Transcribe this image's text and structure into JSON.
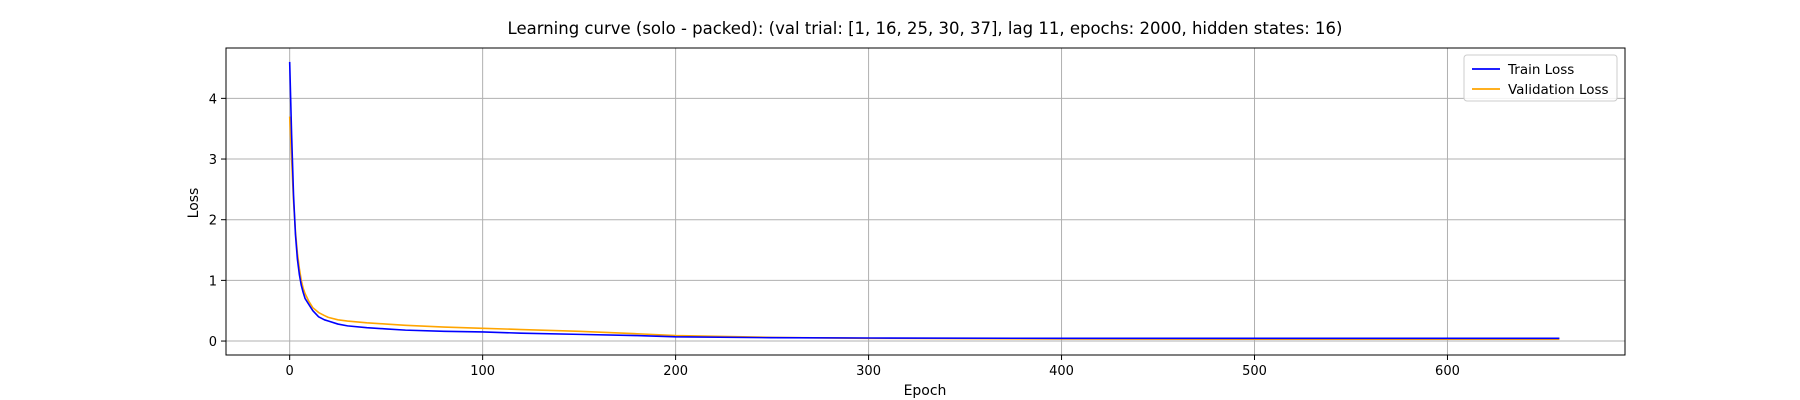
{
  "chart_data": {
    "type": "line",
    "title": "Learning curve (solo - packed): (val trial: [1, 16, 25, 30, 37], lag 11, epochs: 2000, hidden states: 16)",
    "xlabel": "Epoch",
    "ylabel": "Loss",
    "xlim": [
      -33,
      692
    ],
    "ylim": [
      -0.23,
      4.83
    ],
    "xticks": [
      0,
      100,
      200,
      300,
      400,
      500,
      600
    ],
    "yticks": [
      0,
      1,
      2,
      3,
      4
    ],
    "grid": true,
    "legend_position": "top-right",
    "series": [
      {
        "name": "Train Loss",
        "color": "#0000ff",
        "points": [
          [
            0,
            4.6
          ],
          [
            1,
            3.4
          ],
          [
            2,
            2.4
          ],
          [
            3,
            1.75
          ],
          [
            4,
            1.35
          ],
          [
            5,
            1.1
          ],
          [
            6,
            0.92
          ],
          [
            7,
            0.8
          ],
          [
            8,
            0.7
          ],
          [
            10,
            0.6
          ],
          [
            12,
            0.5
          ],
          [
            15,
            0.4
          ],
          [
            18,
            0.35
          ],
          [
            20,
            0.33
          ],
          [
            25,
            0.28
          ],
          [
            30,
            0.25
          ],
          [
            40,
            0.22
          ],
          [
            50,
            0.2
          ],
          [
            60,
            0.18
          ],
          [
            80,
            0.16
          ],
          [
            100,
            0.15
          ],
          [
            120,
            0.13
          ],
          [
            150,
            0.11
          ],
          [
            180,
            0.09
          ],
          [
            200,
            0.07
          ],
          [
            250,
            0.055
          ],
          [
            300,
            0.05
          ],
          [
            400,
            0.045
          ],
          [
            500,
            0.045
          ],
          [
            600,
            0.045
          ],
          [
            658,
            0.045
          ]
        ]
      },
      {
        "name": "Validation Loss",
        "color": "#ffa500",
        "points": [
          [
            0,
            3.7
          ],
          [
            1,
            3.0
          ],
          [
            2,
            2.3
          ],
          [
            3,
            1.8
          ],
          [
            4,
            1.45
          ],
          [
            5,
            1.2
          ],
          [
            6,
            1.0
          ],
          [
            7,
            0.87
          ],
          [
            8,
            0.78
          ],
          [
            10,
            0.65
          ],
          [
            12,
            0.55
          ],
          [
            15,
            0.47
          ],
          [
            18,
            0.42
          ],
          [
            20,
            0.39
          ],
          [
            25,
            0.35
          ],
          [
            30,
            0.33
          ],
          [
            40,
            0.3
          ],
          [
            50,
            0.28
          ],
          [
            60,
            0.26
          ],
          [
            80,
            0.23
          ],
          [
            100,
            0.21
          ],
          [
            120,
            0.19
          ],
          [
            150,
            0.16
          ],
          [
            180,
            0.12
          ],
          [
            200,
            0.09
          ],
          [
            250,
            0.06
          ],
          [
            300,
            0.045
          ],
          [
            400,
            0.035
          ],
          [
            500,
            0.03
          ],
          [
            600,
            0.03
          ],
          [
            658,
            0.03
          ]
        ]
      }
    ]
  }
}
